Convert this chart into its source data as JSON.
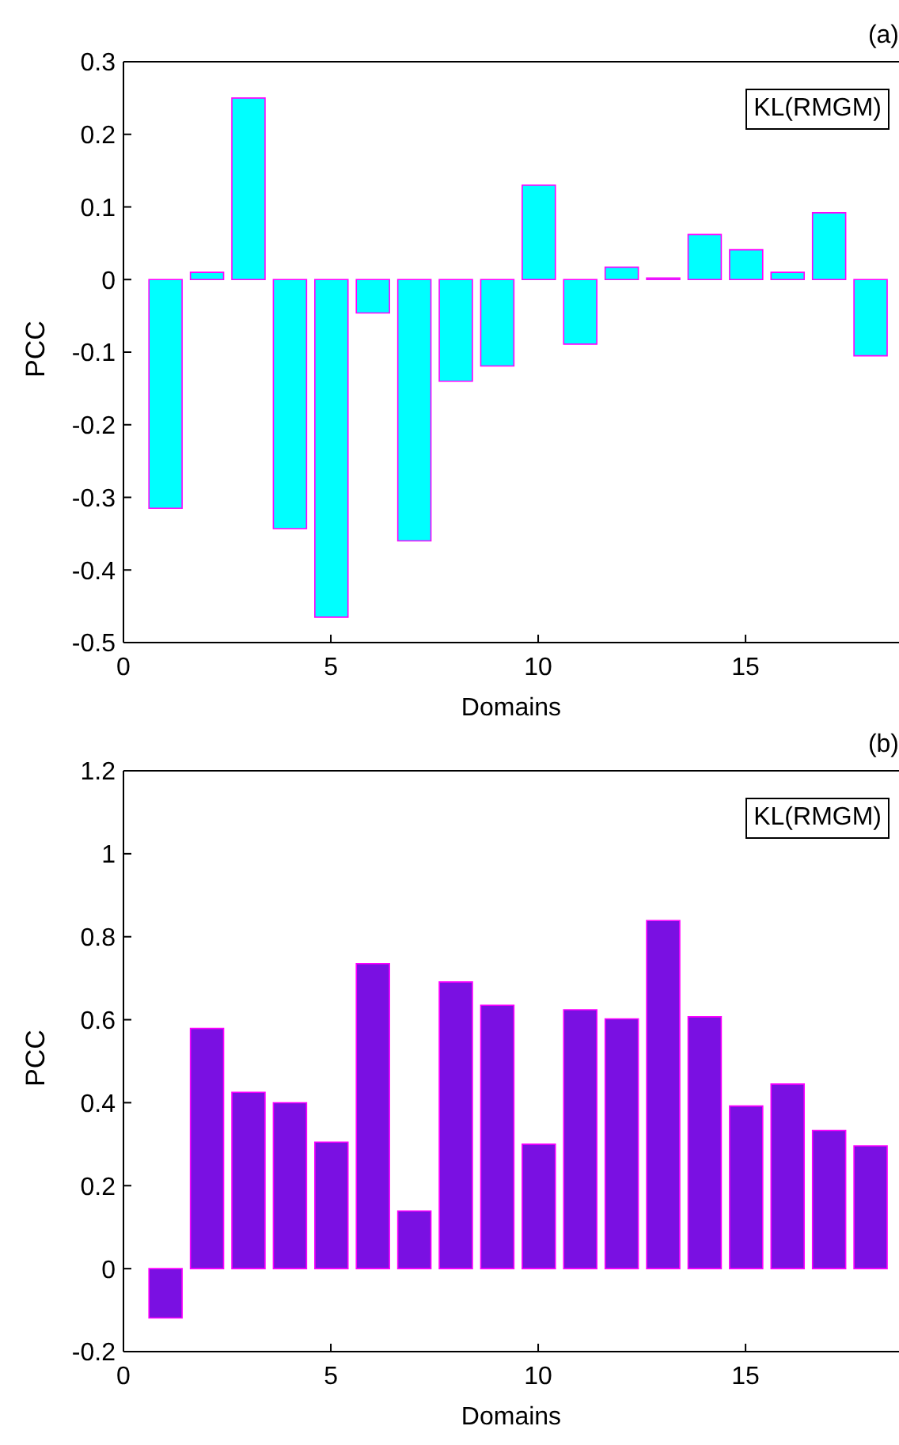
{
  "chart_data": [
    {
      "type": "bar",
      "title": "(a)",
      "xlabel": "Domains",
      "ylabel": "PCC",
      "annotations": [
        "KL(RMGM)"
      ],
      "x": [
        1,
        2,
        3,
        4,
        5,
        6,
        7,
        8,
        9,
        10,
        11,
        12,
        13,
        14,
        15,
        16,
        17,
        18
      ],
      "values": [
        -0.315,
        0.01,
        0.25,
        -0.343,
        -0.465,
        -0.046,
        -0.36,
        -0.14,
        -0.119,
        0.13,
        -0.089,
        0.017,
        0.002,
        0.062,
        0.041,
        0.01,
        0.092,
        -0.105
      ],
      "color": "#00ffff",
      "xlim": [
        0,
        18.7
      ],
      "xticks": [
        0,
        5,
        10,
        15
      ],
      "ylim": [
        -0.5,
        0.3
      ],
      "yticks": [
        -0.5,
        -0.4,
        -0.3,
        -0.2,
        -0.1,
        0,
        0.1,
        0.2,
        0.3
      ],
      "grid": false,
      "legend": false
    },
    {
      "type": "bar",
      "title": "(b)",
      "xlabel": "Domains",
      "ylabel": "PCC",
      "annotations": [
        "KL(RMGM)"
      ],
      "x": [
        1,
        2,
        3,
        4,
        5,
        6,
        7,
        8,
        9,
        10,
        11,
        12,
        13,
        14,
        15,
        16,
        17,
        18
      ],
      "values": [
        -0.119,
        0.579,
        0.425,
        0.4,
        0.305,
        0.735,
        0.139,
        0.691,
        0.635,
        0.3,
        0.624,
        0.602,
        0.839,
        0.607,
        0.392,
        0.445,
        0.333,
        0.296
      ],
      "color": "#7a10e2",
      "xlim": [
        0,
        18.7
      ],
      "xticks": [
        0,
        5,
        10,
        15
      ],
      "ylim": [
        -0.2,
        1.2
      ],
      "yticks": [
        -0.2,
        0,
        0.2,
        0.4,
        0.6,
        0.8,
        1,
        1.2
      ],
      "grid": false,
      "legend": false
    }
  ]
}
